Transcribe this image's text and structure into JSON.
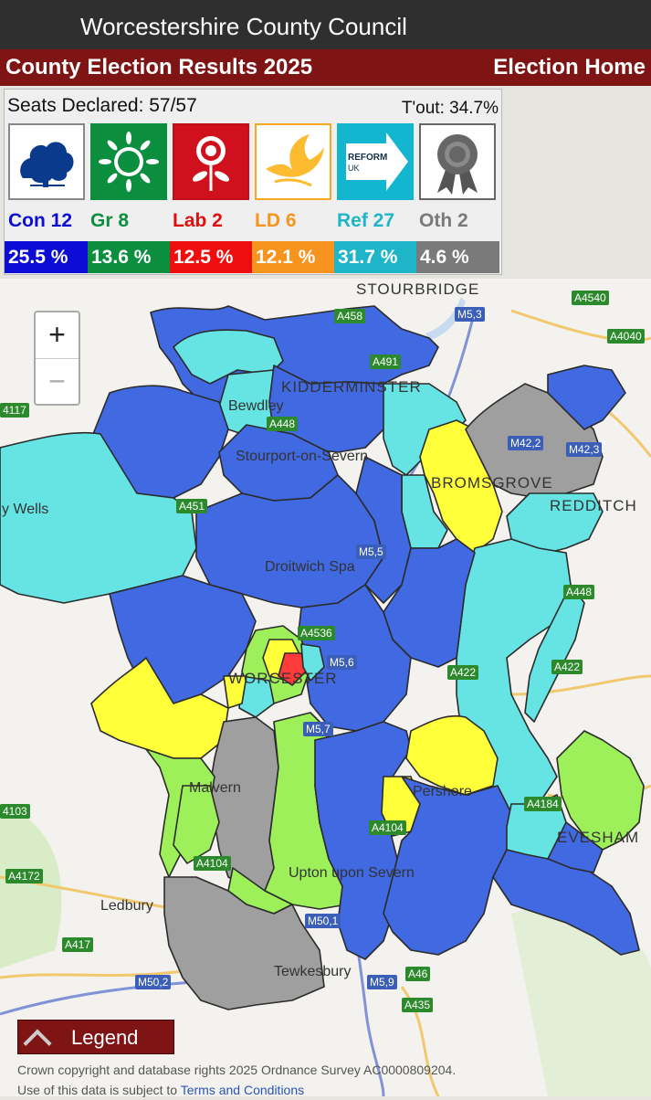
{
  "app": {
    "title": "Worcestershire County Council"
  },
  "header": {
    "title": "County Election Results 2025",
    "home_link": "Election Home"
  },
  "summary": {
    "seats_declared": "Seats Declared: 57/57",
    "turnout": "T'out: 34.7%"
  },
  "parties": [
    {
      "label": "Con 12",
      "pct": "25.5 %",
      "color": "#0c0cd6",
      "label_color": "#0c0cd6",
      "icon": "tree-icon"
    },
    {
      "label": "Gr 8",
      "pct": "13.6 %",
      "color": "#0b8f3f",
      "label_color": "#0b8f3f",
      "icon": "globe-leaves-icon"
    },
    {
      "label": "Lab 2",
      "pct": "12.5 %",
      "color": "#ee0e0e",
      "label_color": "#e20f0f",
      "icon": "rose-icon"
    },
    {
      "label": "LD 6",
      "pct": "12.1 %",
      "color": "#f7941d",
      "label_color": "#f7941d",
      "icon": "bird-icon"
    },
    {
      "label": "Ref 27",
      "pct": "31.7 %",
      "color": "#1fb5c8",
      "label_color": "#1fb5c8",
      "icon": "reform-arrow-icon"
    },
    {
      "label": "Oth 2",
      "pct": "4.6 %",
      "color": "#7a7a7a",
      "label_color": "#7a7a7a",
      "icon": "rosette-icon"
    }
  ],
  "reform_logo_text": {
    "line1": "REFORM",
    "line2": "UK"
  },
  "map": {
    "places": [
      "STOURBRIDGE",
      "KIDDERMINSTER",
      "Bewdley",
      "Stourport-on-Severn",
      "BROMSGROVE",
      "REDDITCH",
      "Droitwich Spa",
      "WORCESTER",
      "Malvern",
      "Pershore",
      "EVESHAM",
      "Upton upon Severn",
      "Ledbury",
      "Tewkesbury",
      "y Wells"
    ],
    "roads": [
      "A458",
      "M5,3",
      "A4540",
      "A4040",
      "A491",
      "A448",
      "M42,2",
      "M42,3",
      "A451",
      "M5,5",
      "A448",
      "A4536",
      "M5,6",
      "A422",
      "A422",
      "M5,7",
      "A4104",
      "A4172",
      "A417",
      "M50,1",
      "M50,2",
      "M5,9",
      "A46",
      "A435",
      "4117",
      "4103",
      "A4104",
      "A4184"
    ]
  },
  "zoom": {
    "in": "+",
    "out": "−"
  },
  "legend": {
    "label": "Legend"
  },
  "attribution": {
    "line1": "Crown copyright and database rights 2025 Ordnance Survey AC0000809204.",
    "line2_prefix": "Use of this data is subject to ",
    "line2_link": "Terms and Conditions"
  }
}
